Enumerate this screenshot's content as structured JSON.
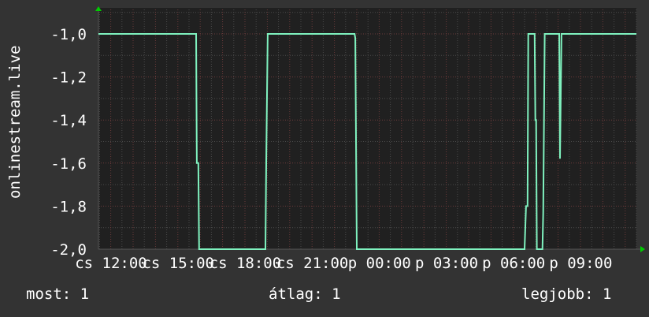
{
  "chart_data": {
    "type": "line",
    "title": "",
    "ylabel": "onlinestream.live",
    "xlabel": "",
    "ylim": [
      -2.0,
      -1.0
    ],
    "yticks": [
      "-1,0",
      "-1,2",
      "-1,4",
      "-1,6",
      "-1,8",
      "-2,0"
    ],
    "ytick_values": [
      -1.0,
      -1.2,
      -1.4,
      -1.6,
      -1.8,
      -2.0
    ],
    "xlim": [
      "cs 10:27",
      "p 10:30"
    ],
    "xticks": [
      "cs 12:00",
      "cs 15:00",
      "cs 18:00",
      "cs 21:00",
      "p 00:00",
      "p 03:00",
      "p 06:00",
      "p 09:00"
    ],
    "grid": true,
    "line_color": "#7ff2bf",
    "series": [
      {
        "x": [
          "cs 10:27",
          "cs 14:49",
          "cs 14:51",
          "cs 14:55",
          "cs 14:57",
          "cs 17:55",
          "cs 17:57",
          "cs 18:01",
          "cs 21:54",
          "cs 21:56",
          "cs 22:00",
          "p 05:30",
          "p 05:34",
          "p 05:38",
          "p 05:40",
          "p 05:57",
          "p 05:59",
          "p 06:01",
          "p 06:03",
          "p 06:18",
          "p 06:20",
          "p 06:24",
          "p 07:03",
          "p 07:05",
          "p 07:09",
          "p 10:30"
        ],
        "y": [
          -1.0,
          -1.0,
          -1.6,
          -1.6,
          -2.0,
          -2.0,
          -1.6,
          -1.0,
          -1.0,
          -1.02,
          -2.0,
          -2.0,
          -1.8,
          -1.8,
          -1.0,
          -1.0,
          -1.4,
          -1.4,
          -2.0,
          -2.0,
          -1.83,
          -1.0,
          -1.0,
          -1.58,
          -1.0,
          -1.0
        ]
      }
    ]
  },
  "footer": {
    "now": "most: 1",
    "avg": "átlag: 1",
    "max": "legjobb: 1"
  }
}
